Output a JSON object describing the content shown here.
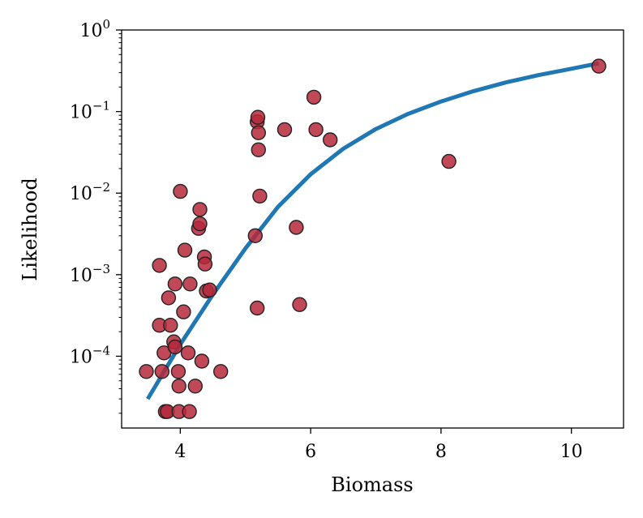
{
  "chart_data": {
    "type": "scatter",
    "title": "",
    "xlabel": "Biomass",
    "ylabel": "Likelihood",
    "xlim": [
      3.1,
      10.8
    ],
    "ylim_log10": [
      -4.88,
      0
    ],
    "yscale": "log",
    "grid": false,
    "x_ticks": [
      {
        "value": 4,
        "label": "4"
      },
      {
        "value": 6,
        "label": "6"
      },
      {
        "value": 8,
        "label": "8"
      },
      {
        "value": 10,
        "label": "10"
      }
    ],
    "y_ticks": [
      {
        "exp": -4,
        "base": "10",
        "exp_label": "−4"
      },
      {
        "exp": -3,
        "base": "10",
        "exp_label": "−3"
      },
      {
        "exp": -2,
        "base": "10",
        "exp_label": "−2"
      },
      {
        "exp": -1,
        "base": "10",
        "exp_label": "−1"
      },
      {
        "exp": 0,
        "base": "10",
        "exp_label": "0"
      }
    ],
    "colors": {
      "points": "#b5283a",
      "point_edge": "#222222",
      "curve": "#1f77b4",
      "axes": "#000000"
    },
    "series": [
      {
        "name": "observations",
        "kind": "scatter",
        "points": [
          [
            3.48,
            6.5e-05
          ],
          [
            3.68,
            0.00024
          ],
          [
            3.68,
            0.0013
          ],
          [
            3.72,
            6.5e-05
          ],
          [
            3.75,
            0.00011
          ],
          [
            3.77,
            2.1e-05
          ],
          [
            3.8,
            2.1e-05
          ],
          [
            3.82,
            0.00052
          ],
          [
            3.85,
            0.00024
          ],
          [
            3.9,
            0.00015
          ],
          [
            3.92,
            0.00013
          ],
          [
            3.92,
            0.00077
          ],
          [
            3.97,
            6.5e-05
          ],
          [
            3.98,
            4.3e-05
          ],
          [
            3.98,
            2.1e-05
          ],
          [
            4.0,
            0.0105
          ],
          [
            4.05,
            0.00035
          ],
          [
            4.07,
            0.002
          ],
          [
            4.12,
            0.00011
          ],
          [
            4.14,
            2.1e-05
          ],
          [
            4.15,
            0.00077
          ],
          [
            4.23,
            4.3e-05
          ],
          [
            4.28,
            0.0037
          ],
          [
            4.3,
            0.0063
          ],
          [
            4.3,
            0.0042
          ],
          [
            4.33,
            8.7e-05
          ],
          [
            4.37,
            0.00165
          ],
          [
            4.38,
            0.00135
          ],
          [
            4.4,
            0.00063
          ],
          [
            4.45,
            0.00065
          ],
          [
            4.62,
            6.5e-05
          ],
          [
            5.15,
            0.003
          ],
          [
            5.18,
            0.075
          ],
          [
            5.18,
            0.00039
          ],
          [
            5.19,
            0.085
          ],
          [
            5.2,
            0.055
          ],
          [
            5.2,
            0.034
          ],
          [
            5.22,
            0.0092
          ],
          [
            5.6,
            0.06
          ],
          [
            5.78,
            0.0038
          ],
          [
            5.83,
            0.00043
          ],
          [
            6.05,
            0.15
          ],
          [
            6.08,
            0.06
          ],
          [
            6.3,
            0.045
          ],
          [
            8.12,
            0.0245
          ],
          [
            10.42,
            0.36
          ]
        ]
      },
      {
        "name": "fit",
        "kind": "line",
        "x": [
          3.5,
          4.0,
          4.5,
          5.0,
          5.5,
          6.0,
          6.5,
          7.0,
          7.5,
          8.0,
          8.5,
          9.0,
          9.5,
          10.0,
          10.42
        ],
        "y": [
          3e-05,
          0.00014,
          0.00057,
          0.0021,
          0.0068,
          0.017,
          0.035,
          0.061,
          0.094,
          0.133,
          0.178,
          0.228,
          0.28,
          0.335,
          0.39
        ]
      }
    ]
  }
}
